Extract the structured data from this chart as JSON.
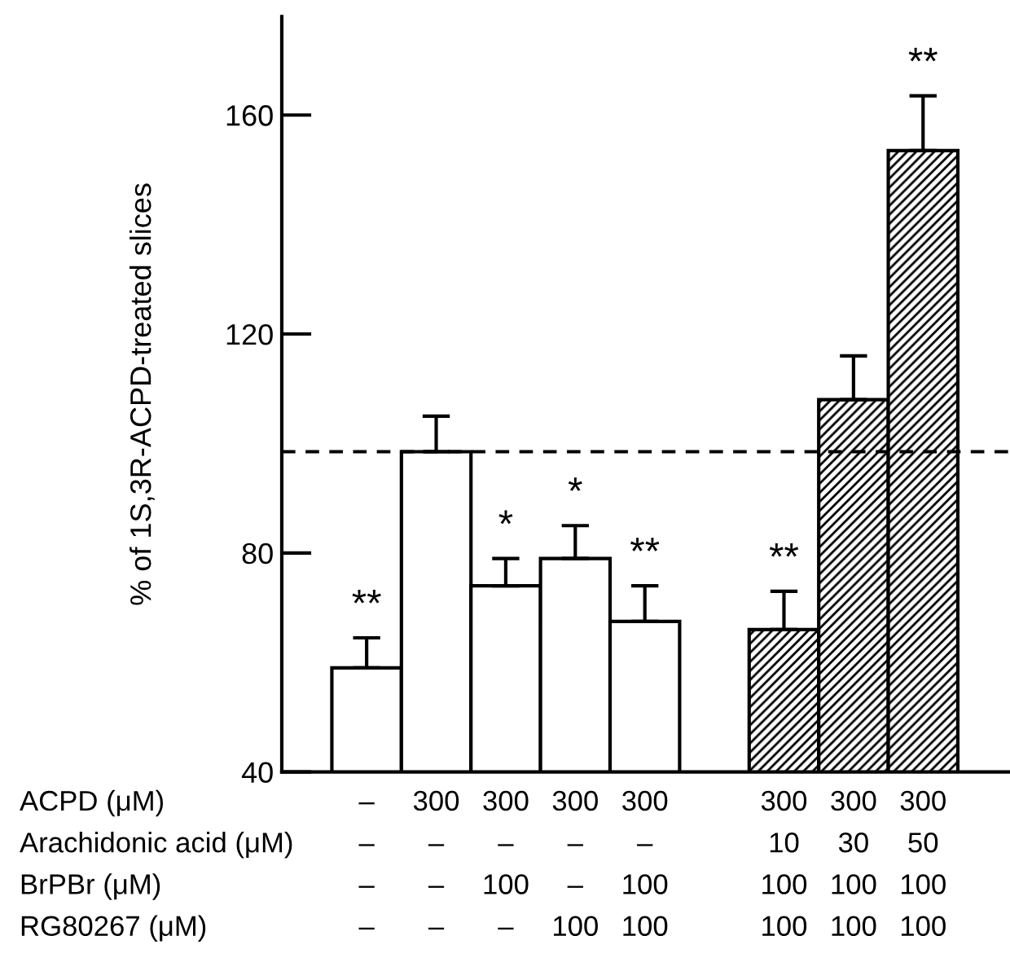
{
  "chart_data": {
    "type": "bar",
    "ylabel": "% of 1S,3R-ACPD-treated slices",
    "categories": [
      "–\n–\n–\n–",
      "300\n–\n–\n–",
      "300\n–\n100\n–",
      "300\n–\n–\n100",
      "300\n–\n100\n100",
      null,
      "300\n10\n100\n100",
      "300\n30\n100\n100",
      "300\n50\n100\n100"
    ],
    "series": [
      {
        "type": "bar",
        "color": "#ffffff",
        "values": [
          59,
          98.5,
          74,
          79,
          67.5,
          null,
          null,
          null,
          null
        ],
        "errors": [
          [
            59,
            64.5
          ],
          [
            98.5,
            105
          ],
          [
            74,
            79
          ],
          [
            79,
            85
          ],
          [
            67.5,
            74
          ],
          null,
          null,
          null,
          null
        ]
      },
      {
        "type": "bar",
        "color": "#000000",
        "values": [
          null,
          null,
          null,
          null,
          null,
          null,
          66,
          108,
          153.5
        ],
        "errors": [
          null,
          null,
          null,
          null,
          null,
          null,
          [
            66,
            73
          ],
          [
            108,
            116
          ],
          [
            153.5,
            163.5
          ]
        ]
      }
    ],
    "ylim": [
      40,
      178
    ],
    "yticks": [
      40,
      80,
      120,
      160
    ],
    "ref_lines": [
      {
        "axis": "y",
        "value": 98.5,
        "line_style": "dashed",
        "color": "#000000"
      }
    ],
    "annotations": [
      "ACPD (μM)",
      "Arachidonic acid (μM)",
      "BrPBr (μM)",
      "RG80267 (μM)",
      {
        "text": "**",
        "x": "–\n–\n–\n–",
        "y": 64.5
      },
      {
        "text": "*",
        "x": "300\n–\n100\n–",
        "y": 79
      },
      {
        "text": "*",
        "x": "300\n–\n–\n100",
        "y": 85
      },
      {
        "text": "**",
        "x": "300\n–\n100\n100",
        "y": 74
      },
      {
        "text": "**",
        "x": "300\n10\n100\n100",
        "y": 73
      },
      {
        "text": "**",
        "x": "300\n50\n100\n100",
        "y": 163.5
      }
    ],
    "grid": false,
    "legend": false
  }
}
